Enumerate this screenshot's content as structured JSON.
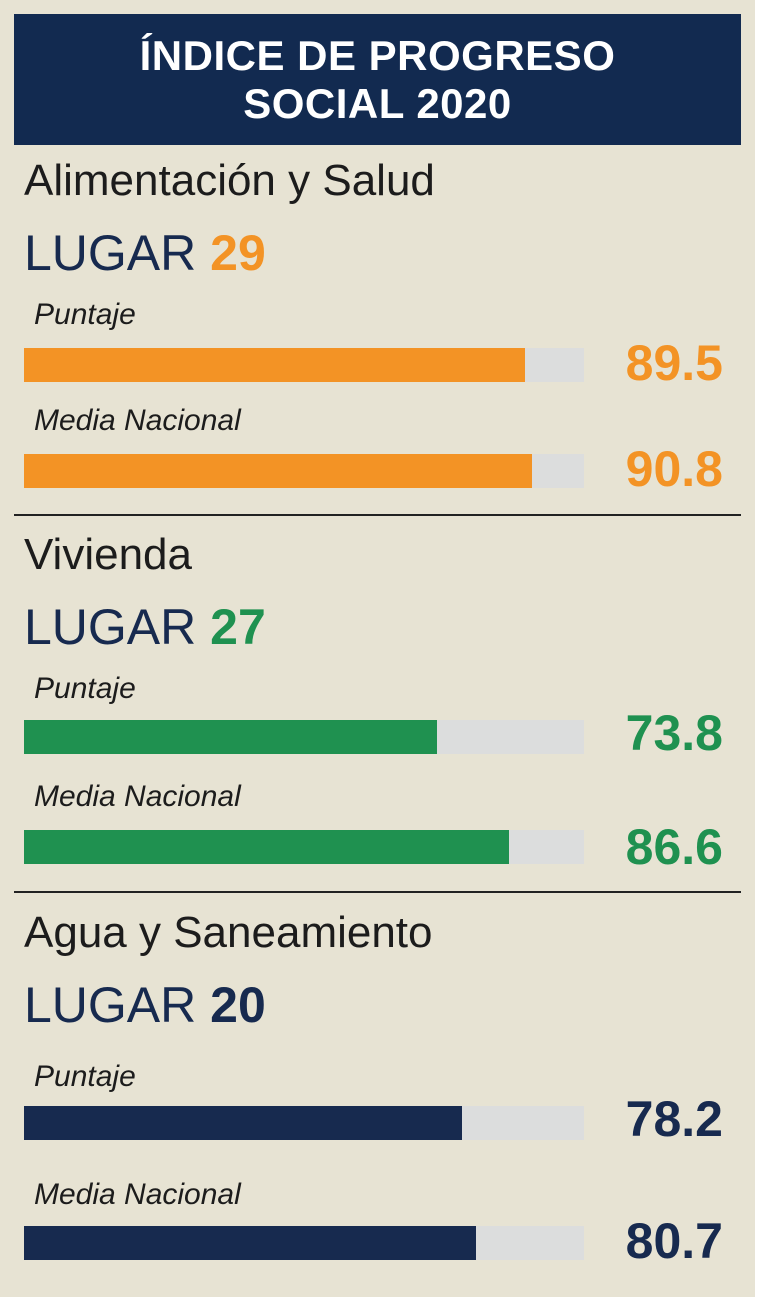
{
  "header": {
    "line1": "ÍNDICE DE PROGRESO",
    "line2": "SOCIAL 2020"
  },
  "chart_data": {
    "type": "bar",
    "title": "ÍNDICE DE PROGRESO SOCIAL 2020",
    "scale_max": 100,
    "sections": [
      {
        "name": "Alimentación y Salud",
        "rank_label": "LUGAR",
        "rank": "29",
        "color": "#f39325",
        "bars": [
          {
            "label": "Puntaje",
            "value": 89.5,
            "display": "89.5"
          },
          {
            "label": "Media Nacional",
            "value": 90.8,
            "display": "90.8"
          }
        ]
      },
      {
        "name": "Vivienda",
        "rank_label": "LUGAR",
        "rank": "27",
        "color": "#1f9150",
        "bars": [
          {
            "label": "Puntaje",
            "value": 73.8,
            "display": "73.8"
          },
          {
            "label": "Media Nacional",
            "value": 86.6,
            "display": "86.6"
          }
        ]
      },
      {
        "name": "Agua y Saneamiento",
        "rank_label": "LUGAR",
        "rank": "20",
        "color": "#172a4f",
        "bars": [
          {
            "label": "Puntaje",
            "value": 78.2,
            "display": "78.2"
          },
          {
            "label": "Media Nacional",
            "value": 80.7,
            "display": "80.7"
          }
        ]
      }
    ]
  }
}
